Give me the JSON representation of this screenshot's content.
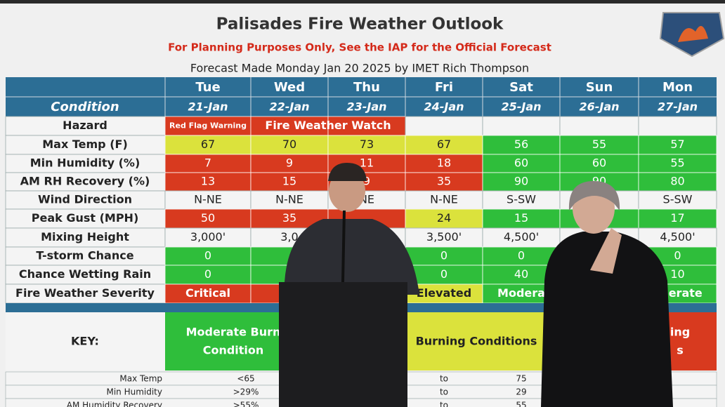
{
  "header": {
    "title": "Palisades Fire Weather Outlook",
    "subtitle": "For Planning Purposes Only, See the IAP for the Official Forecast",
    "forecast_line": "Forecast Made Monday Jan 20 2025 by IMET Rich Thompson"
  },
  "table": {
    "days": [
      "Tue",
      "Wed",
      "Thu",
      "Fri",
      "Sat",
      "Sun",
      "Mon"
    ],
    "condition_label": "Condition",
    "dates": [
      "21-Jan",
      "22-Jan",
      "23-Jan",
      "24-Jan",
      "25-Jan",
      "26-Jan",
      "27-Jan"
    ],
    "header_color": "#2c6e95",
    "rows": [
      {
        "label": "Hazard",
        "cells": [
          "Red Flag Warning",
          "Fire Weather Watch",
          null,
          null,
          null,
          null,
          null
        ],
        "colors": [
          "#d83a1f",
          "#d83a1f",
          "#d83a1f",
          "#f4f4f4",
          "#f4f4f4",
          "#f4f4f4",
          "#f4f4f4"
        ]
      },
      {
        "label": "Max Temp (F)",
        "cells": [
          "67",
          "70",
          "73",
          "67",
          "56",
          "55",
          "57"
        ],
        "colors": [
          "#dbe23c",
          "#dbe23c",
          "#dbe23c",
          "#dbe23c",
          "#2fbe3b",
          "#2fbe3b",
          "#2fbe3b"
        ]
      },
      {
        "label": "Min Humidity (%)",
        "cells": [
          "7",
          "9",
          "11",
          "18",
          "60",
          "60",
          "55"
        ],
        "colors": [
          "#d83a1f",
          "#d83a1f",
          "#d83a1f",
          "#d83a1f",
          "#2fbe3b",
          "#2fbe3b",
          "#2fbe3b"
        ]
      },
      {
        "label": "AM RH Recovery (%)",
        "cells": [
          "13",
          "15",
          "9",
          "35",
          "90",
          "90",
          "80"
        ],
        "colors": [
          "#d83a1f",
          "#d83a1f",
          "#d83a1f",
          "#d83a1f",
          "#2fbe3b",
          "#2fbe3b",
          "#2fbe3b"
        ]
      },
      {
        "label": "Wind Direction",
        "cells": [
          "N-NE",
          "N-NE",
          "NE",
          "N-NE",
          "S-SW",
          null,
          "S-SW"
        ],
        "colors": [
          "#f4f4f4",
          "#f4f4f4",
          "#f4f4f4",
          "#f4f4f4",
          "#f4f4f4",
          "#f4f4f4",
          "#f4f4f4"
        ]
      },
      {
        "label": "Peak Gust (MPH)",
        "cells": [
          "50",
          "35",
          null,
          "24",
          "15",
          null,
          "17"
        ],
        "colors": [
          "#d83a1f",
          "#d83a1f",
          "#d83a1f",
          "#dbe23c",
          "#2fbe3b",
          "#2fbe3b",
          "#2fbe3b"
        ]
      },
      {
        "label": "Mixing Height",
        "cells": [
          "3,000'",
          "3,0",
          null,
          "3,500'",
          "4,500'",
          null,
          "4,500'"
        ],
        "colors": [
          "#f4f4f4",
          "#f4f4f4",
          "#f4f4f4",
          "#f4f4f4",
          "#f4f4f4",
          "#f4f4f4",
          "#f4f4f4"
        ]
      },
      {
        "label": "T-storm Chance",
        "cells": [
          "0",
          null,
          null,
          "0",
          "0",
          null,
          "0"
        ],
        "colors": [
          "#2fbe3b",
          "#2fbe3b",
          "#2fbe3b",
          "#2fbe3b",
          "#2fbe3b",
          "#2fbe3b",
          "#2fbe3b"
        ]
      },
      {
        "label": "Chance Wetting Rain",
        "cells": [
          "0",
          null,
          null,
          "0",
          "40",
          null,
          "10"
        ],
        "colors": [
          "#2fbe3b",
          "#2fbe3b",
          "#2fbe3b",
          "#2fbe3b",
          "#2fbe3b",
          "#2fbe3b",
          "#2fbe3b"
        ]
      },
      {
        "label": "Fire Weather Severity",
        "cells": [
          "Critical",
          "Cr",
          null,
          "Elevated",
          "Modera",
          null,
          "oderate"
        ],
        "colors": [
          "#d83a1f",
          "#d83a1f",
          "#d83a1f",
          "#dbe23c",
          "#2fbe3b",
          "#2fbe3b",
          "#2fbe3b"
        ]
      }
    ]
  },
  "key": {
    "label": "KEY:",
    "bands": [
      {
        "lines": [
          "Moderate Burn",
          "Condition"
        ],
        "color": "#2fbe3b"
      },
      {
        "lines": [
          "Burning Conditions"
        ],
        "color": "#dbe23c"
      },
      {
        "lines": [
          "ing",
          "s"
        ],
        "color": "#d83a1f"
      }
    ],
    "rows": [
      {
        "label": "Max Temp",
        "cells": [
          "<65",
          "to",
          "75"
        ]
      },
      {
        "label": "Min Humidity",
        "cells": [
          ">29%",
          "to",
          "29"
        ]
      },
      {
        "label": "AM Humidity Recovery",
        "cells": [
          ">55%",
          "to",
          "55"
        ]
      }
    ]
  }
}
